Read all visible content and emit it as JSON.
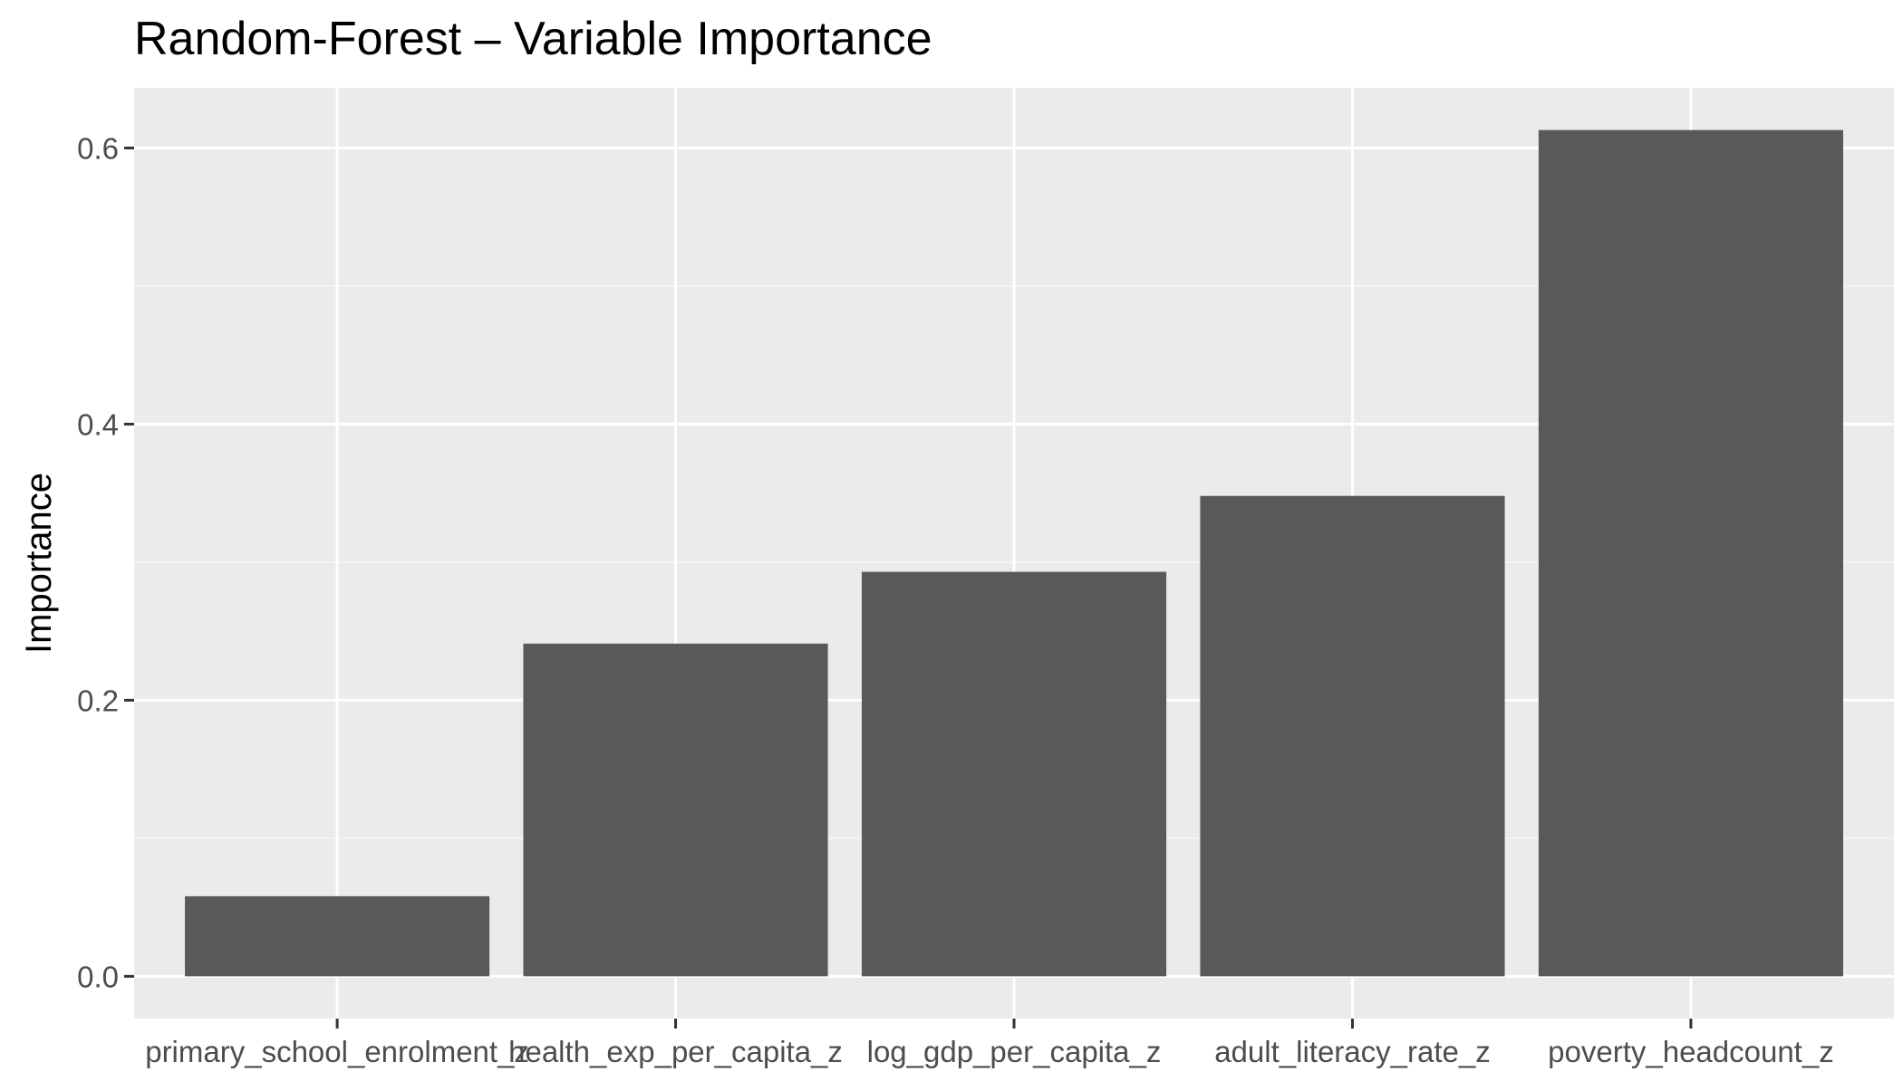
{
  "chart_data": {
    "type": "bar",
    "title": "Random-Forest – Variable Importance",
    "xlabel": "",
    "ylabel": "Importance",
    "categories": [
      "primary_school_enrolment_z",
      "health_exp_per_capita_z",
      "log_gdp_per_capita_z",
      "adult_literacy_rate_z",
      "poverty_headcount_z"
    ],
    "values": [
      0.058,
      0.241,
      0.293,
      0.348,
      0.613
    ],
    "ylim": [
      -0.0306,
      0.6436
    ],
    "yticks": [
      0.0,
      0.2,
      0.4,
      0.6
    ],
    "ytick_labels": [
      "0.0",
      "0.2",
      "0.4",
      "0.6"
    ],
    "grid": true,
    "legend": "none",
    "colors": {
      "bar": "#595959",
      "panel": "#ebebeb",
      "grid_major": "#ffffff",
      "grid_minor": "#f7f7f7",
      "tick": "#333333",
      "tick_label": "#4d4d4d"
    }
  }
}
